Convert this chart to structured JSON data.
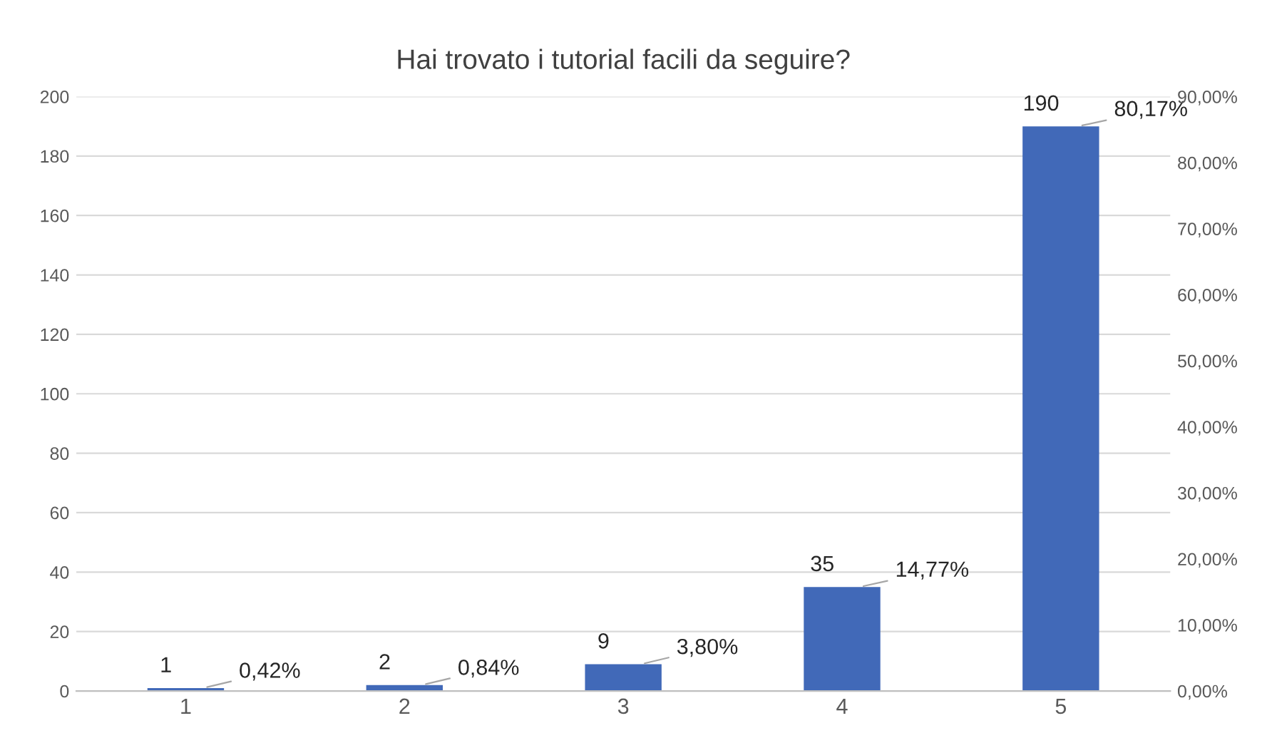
{
  "chart_data": {
    "type": "bar",
    "title": "Hai trovato i tutorial facili da seguire?",
    "categories": [
      "1",
      "2",
      "3",
      "4",
      "5"
    ],
    "series": [
      {
        "color": "#4169b8",
        "values": [
          1,
          2,
          9,
          35,
          190
        ],
        "value_labels": [
          "1",
          "2",
          "9",
          "35",
          "190"
        ]
      }
    ],
    "annotations": [
      "0,42%",
      "0,84%",
      "3,80%",
      "14,77%",
      "80,17%"
    ],
    "ylim": [
      0,
      200
    ],
    "yticks": [
      0,
      20,
      40,
      60,
      80,
      100,
      120,
      140,
      160,
      180,
      200
    ],
    "y2lim": [
      0,
      90
    ],
    "y2ticks": [
      {
        "value": 0,
        "label": "0,00%"
      },
      {
        "value": 10,
        "label": "10,00%"
      },
      {
        "value": 20,
        "label": "20,00%"
      },
      {
        "value": 30,
        "label": "30,00%"
      },
      {
        "value": 40,
        "label": "40,00%"
      },
      {
        "value": 50,
        "label": "50,00%"
      },
      {
        "value": 60,
        "label": "60,00%"
      },
      {
        "value": 70,
        "label": "70,00%"
      },
      {
        "value": 80,
        "label": "80,00%"
      },
      {
        "value": 90,
        "label": "90,00%"
      }
    ],
    "grid": "y",
    "legend": false
  }
}
